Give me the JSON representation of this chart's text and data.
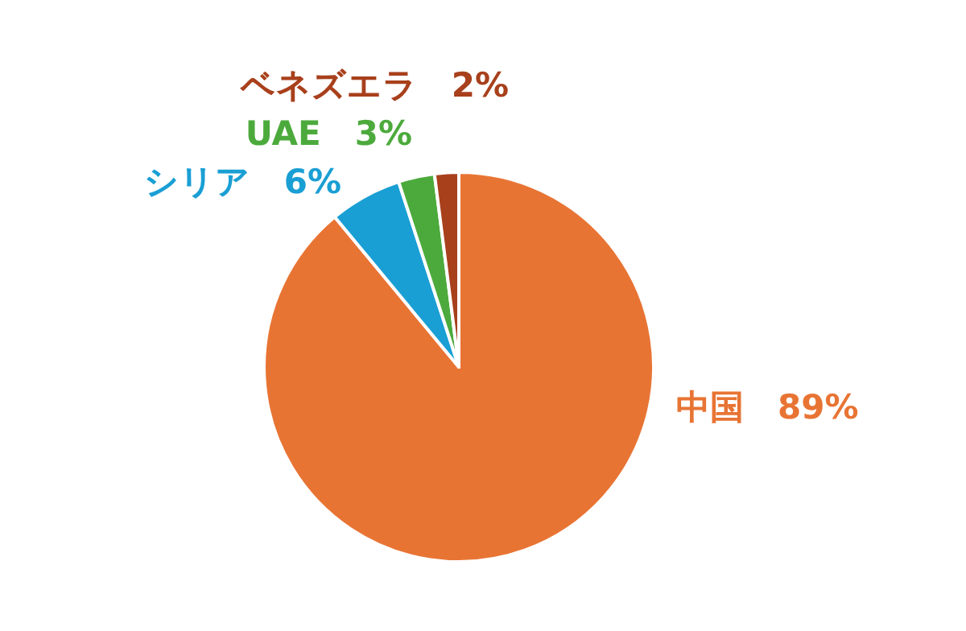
{
  "chart_data": {
    "type": "pie",
    "categories": [
      "中国",
      "シリア",
      "UAE",
      "ベネズエラ"
    ],
    "values": [
      89,
      6,
      3,
      2
    ],
    "value_labels": [
      "89%",
      "6%",
      "3%",
      "2%"
    ],
    "colors": [
      "#e87434",
      "#1a9fd4",
      "#4caa3c",
      "#a8401c"
    ]
  }
}
